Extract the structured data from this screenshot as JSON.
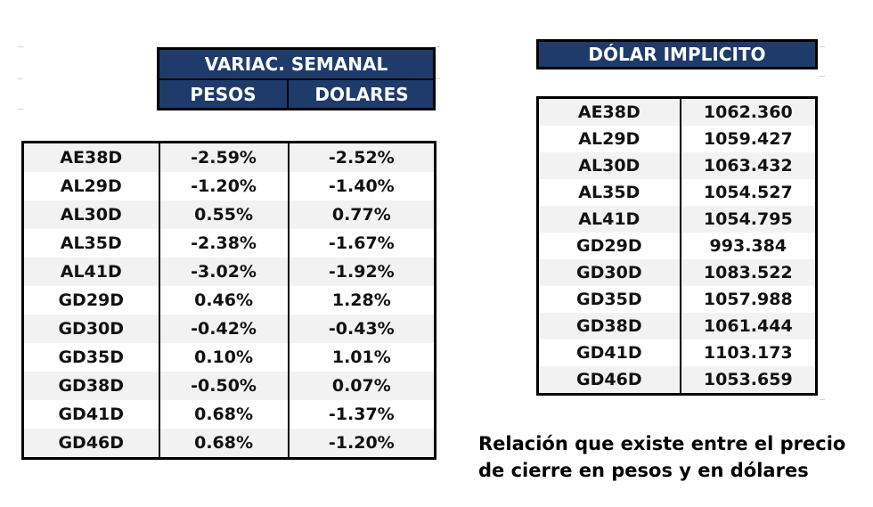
{
  "variacion": {
    "title": "VARIAC. SEMANAL",
    "col_pesos": "PESOS",
    "col_dolares": "DOLARES",
    "rows": [
      {
        "ticker": "AE38D",
        "pesos": "-2.59%",
        "dolares": "-2.52%"
      },
      {
        "ticker": "AL29D",
        "pesos": "-1.20%",
        "dolares": "-1.40%"
      },
      {
        "ticker": "AL30D",
        "pesos": "0.55%",
        "dolares": "0.77%"
      },
      {
        "ticker": "AL35D",
        "pesos": "-2.38%",
        "dolares": "-1.67%"
      },
      {
        "ticker": "AL41D",
        "pesos": "-3.02%",
        "dolares": "-1.92%"
      },
      {
        "ticker": "GD29D",
        "pesos": "0.46%",
        "dolares": "1.28%"
      },
      {
        "ticker": "GD30D",
        "pesos": "-0.42%",
        "dolares": "-0.43%"
      },
      {
        "ticker": "GD35D",
        "pesos": "0.10%",
        "dolares": "1.01%"
      },
      {
        "ticker": "GD38D",
        "pesos": "-0.50%",
        "dolares": "0.07%"
      },
      {
        "ticker": "GD41D",
        "pesos": "0.68%",
        "dolares": "-1.37%"
      },
      {
        "ticker": "GD46D",
        "pesos": "0.68%",
        "dolares": "-1.20%"
      }
    ]
  },
  "dolar_implicito": {
    "title": "DÓLAR IMPLICITO",
    "rows": [
      {
        "ticker": "AE38D",
        "valor": "1062.360"
      },
      {
        "ticker": "AL29D",
        "valor": "1059.427"
      },
      {
        "ticker": "AL30D",
        "valor": "1063.432"
      },
      {
        "ticker": "AL35D",
        "valor": "1054.527"
      },
      {
        "ticker": "AL41D",
        "valor": "1054.795"
      },
      {
        "ticker": "GD29D",
        "valor": "993.384"
      },
      {
        "ticker": "GD30D",
        "valor": "1083.522"
      },
      {
        "ticker": "GD35D",
        "valor": "1057.988"
      },
      {
        "ticker": "GD38D",
        "valor": "1061.444"
      },
      {
        "ticker": "GD41D",
        "valor": "1103.173"
      },
      {
        "ticker": "GD46D",
        "valor": "1053.659"
      }
    ]
  },
  "caption": {
    "line1": "Relación que existe entre el precio",
    "line2": "de cierre en pesos y en dólares"
  },
  "colors": {
    "header_bg": "#1f3b6b",
    "header_text": "#ffffff",
    "row_alt": "#f2f2f2"
  }
}
